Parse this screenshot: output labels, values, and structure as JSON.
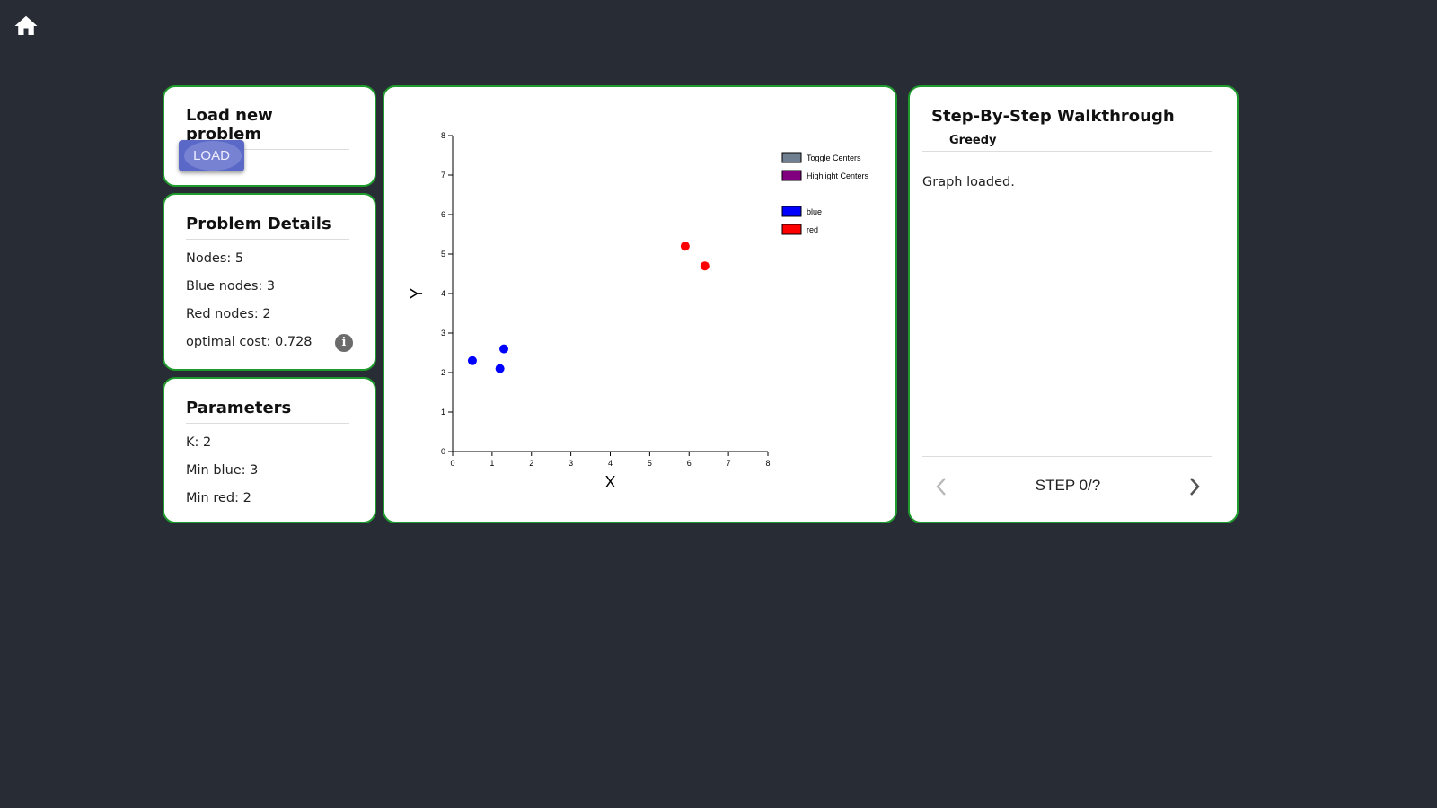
{
  "load": {
    "title": "Load new problem",
    "button_label": "LOAD"
  },
  "details": {
    "title": "Problem Details",
    "nodes": "Nodes: 5",
    "blue_nodes": "Blue nodes: 3",
    "red_nodes": "Red nodes: 2",
    "optimal_cost": "optimal cost: 0.728",
    "info_glyph": "i"
  },
  "params": {
    "title": "Parameters",
    "k": "K: 2",
    "min_blue": "Min blue: 3",
    "min_red": "Min red: 2"
  },
  "walkthrough": {
    "title": "Step-By-Step Walkthrough",
    "subtitle": "Greedy",
    "status": "Graph loaded.",
    "step": "STEP 0/?"
  },
  "colors": {
    "card_border": "#1f9a2c",
    "background": "#282c34",
    "button": "#5a68c8",
    "toggle_centers": "#708090",
    "highlight_centers": "#800080",
    "blue": "#0000ff",
    "red": "#ff0000"
  },
  "icons": {
    "home": "home-icon",
    "info": "info-icon",
    "prev": "chevron-left-icon",
    "next": "chevron-right-icon"
  },
  "chart_data": {
    "type": "scatter",
    "xlabel": "X",
    "ylabel": "Y",
    "xlim": [
      0,
      8
    ],
    "ylim": [
      0,
      8
    ],
    "xticks": [
      "0",
      "1",
      "2",
      "3",
      "4",
      "5",
      "6",
      "7",
      "8"
    ],
    "yticks": [
      "0",
      "1",
      "2",
      "3",
      "4",
      "5",
      "6",
      "7",
      "8"
    ],
    "legend": [
      {
        "label": "Toggle Centers",
        "color": "#708090"
      },
      {
        "label": "Highlight Centers",
        "color": "#800080"
      },
      {
        "label": "blue",
        "color": "#0000ff"
      },
      {
        "label": "red",
        "color": "#ff0000"
      }
    ],
    "legend_position": "top-right",
    "series": [
      {
        "name": "blue",
        "color": "#0000ff",
        "points": [
          [
            0.5,
            2.3
          ],
          [
            1.2,
            2.1
          ],
          [
            1.3,
            2.6
          ]
        ]
      },
      {
        "name": "red",
        "color": "#ff0000",
        "points": [
          [
            5.9,
            5.2
          ],
          [
            6.4,
            4.7
          ]
        ]
      }
    ]
  }
}
